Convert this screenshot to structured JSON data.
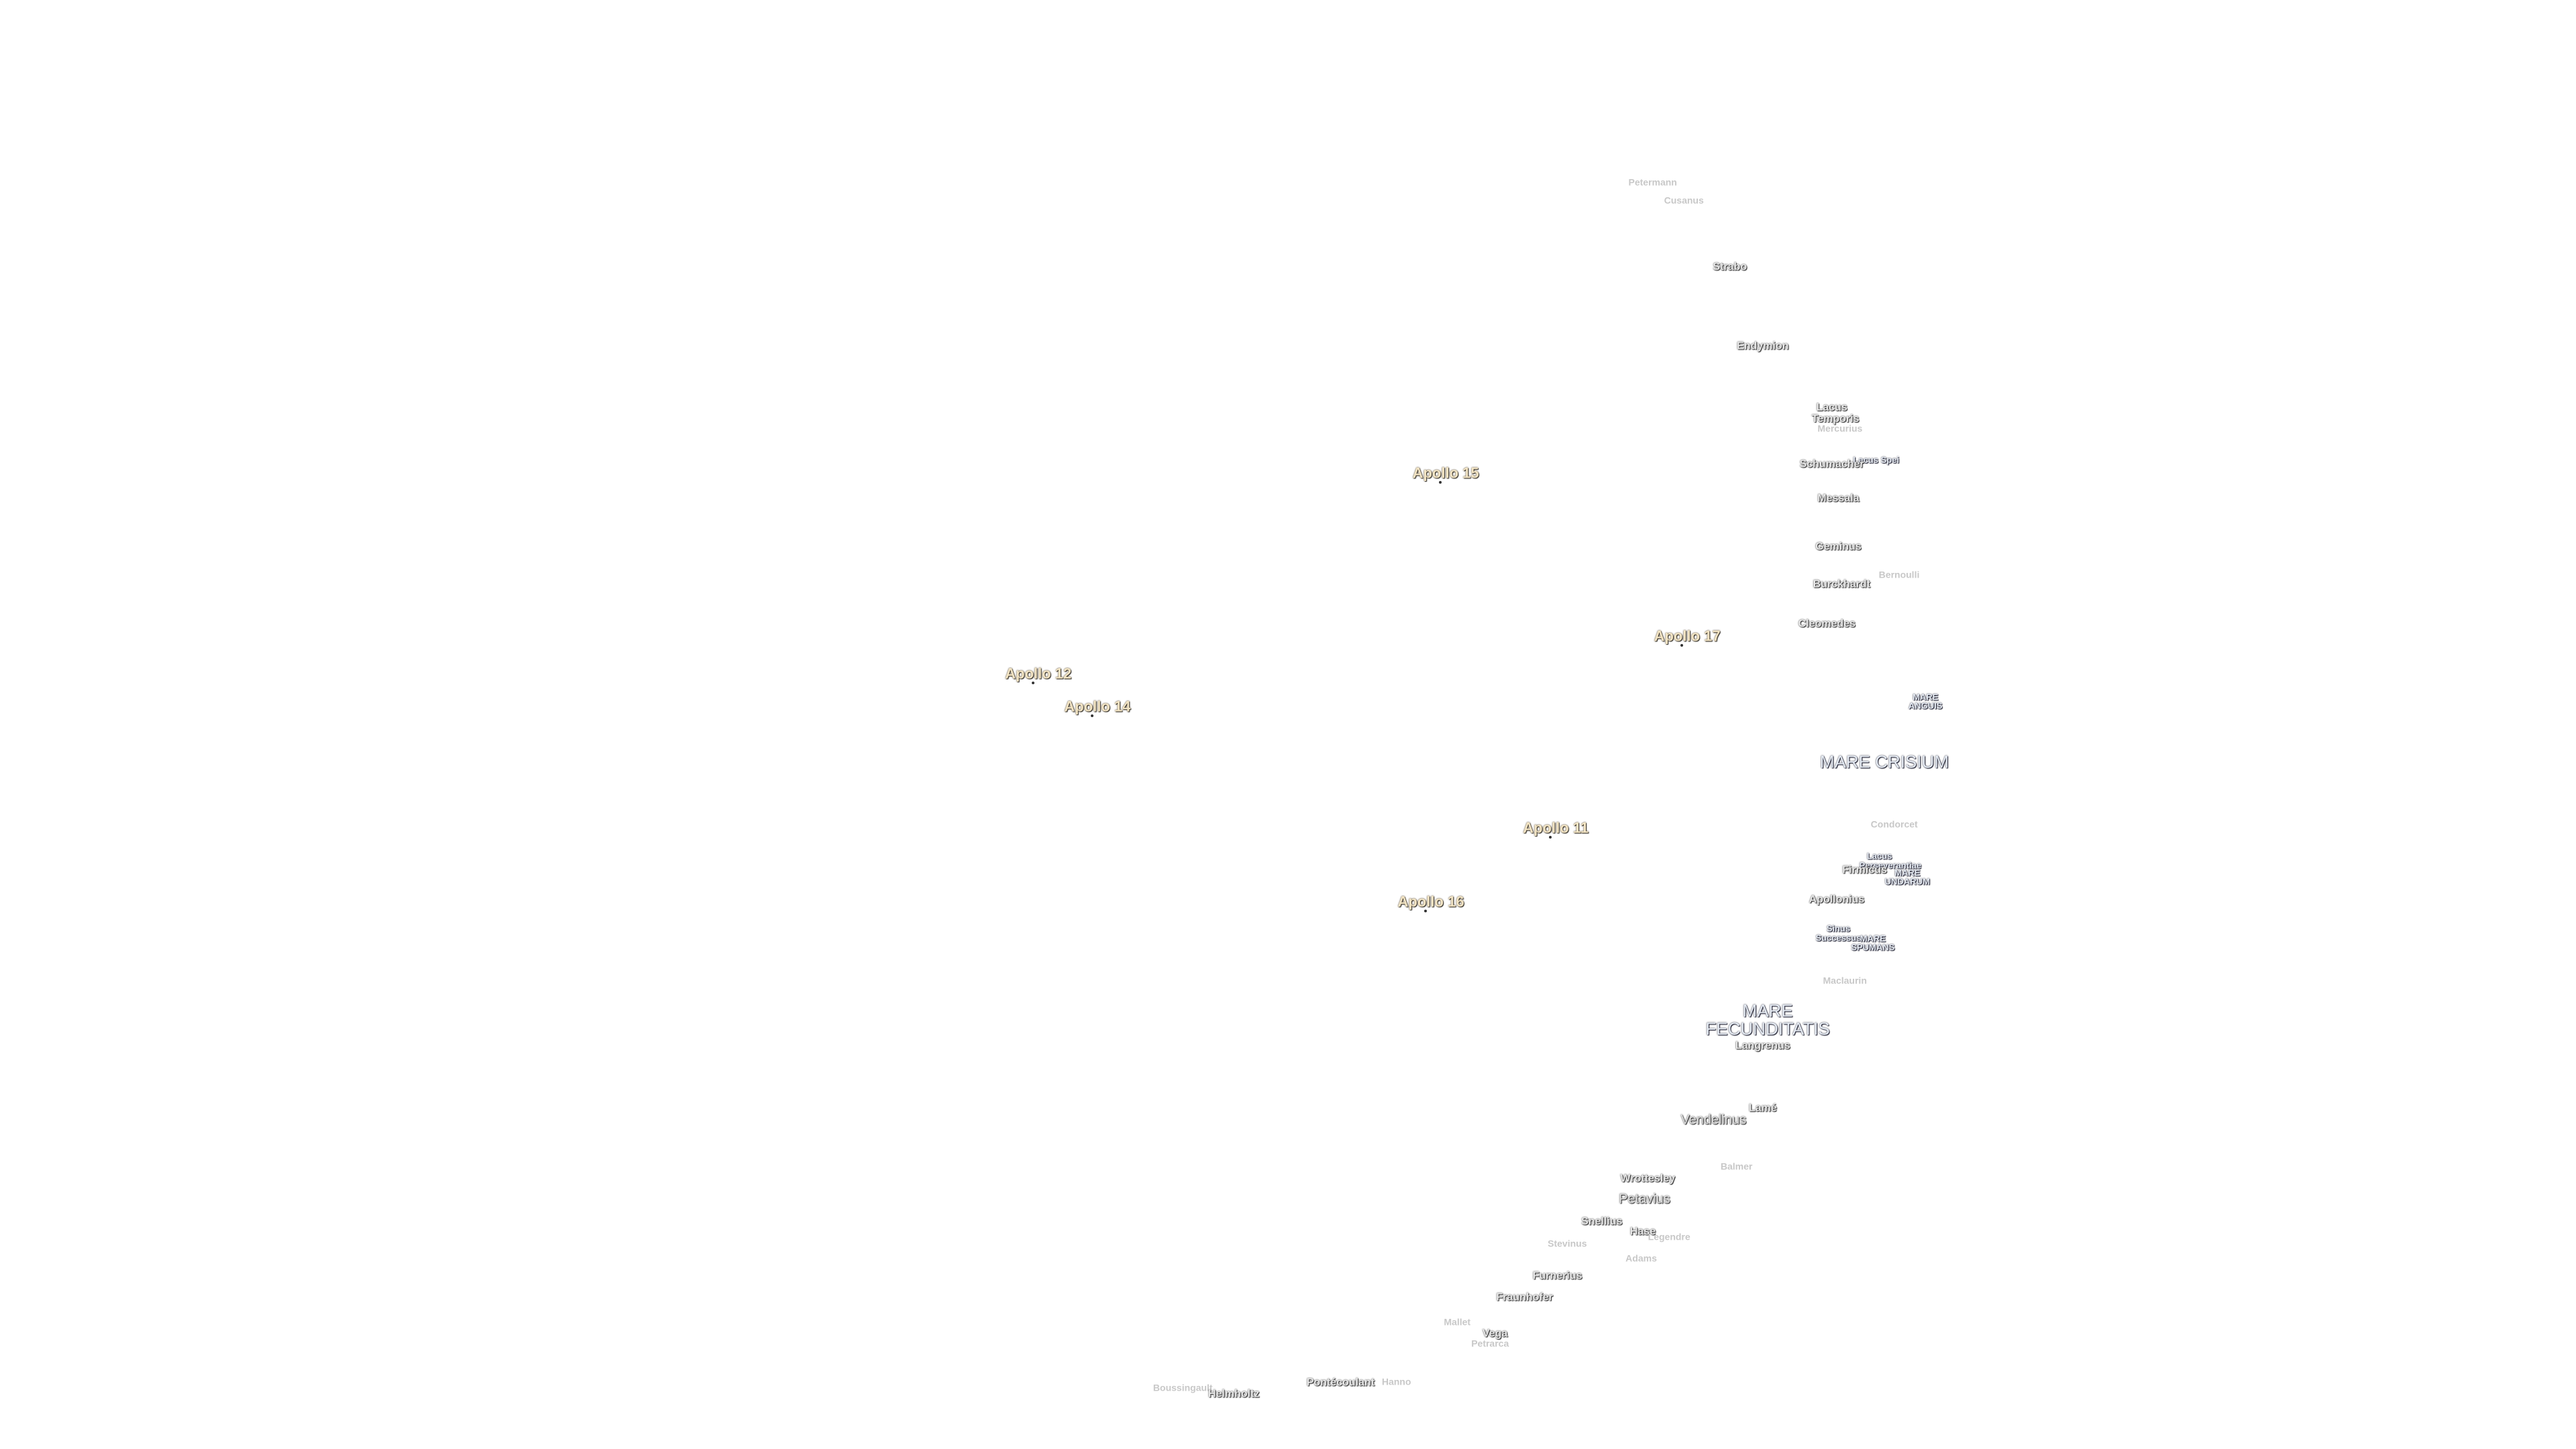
{
  "labels": [
    "Petermann",
    "Cusanus",
    "Strabo",
    "Endymion",
    "Lacus Temporis",
    "Mercurius",
    "Lacus Spei",
    "Schumacher",
    "Messala",
    "Geminus",
    "Bernoulli",
    "Burckhardt",
    "Cleomedes",
    "Apollo 15",
    "Apollo 17",
    "Apollo 12",
    "Apollo 14",
    "MARE ANGUIS",
    "MARE CRISIUM",
    "Condorcet",
    "Lacus Perseverantiae",
    "Firmicus",
    "MARE UNDARUM",
    "Apollo 11",
    "Apollo 16",
    "Apollonius",
    "Sinus Successus",
    "MARE SPUMANS",
    "Maclaurin",
    "MARE FECUNDITATIS",
    "Langrenus",
    "Lamé",
    "Vendelinus",
    "Balmer",
    "Wrottesley",
    "Petavius",
    "Snellius",
    "Hase",
    "Legendre",
    "Stevinus",
    "Adams",
    "Furnerius",
    "Fraunhofer",
    "Mallet",
    "Vega",
    "Petrarca",
    "Pontécoulant",
    "Hanno",
    "Boussingault",
    "Helmholtz"
  ]
}
